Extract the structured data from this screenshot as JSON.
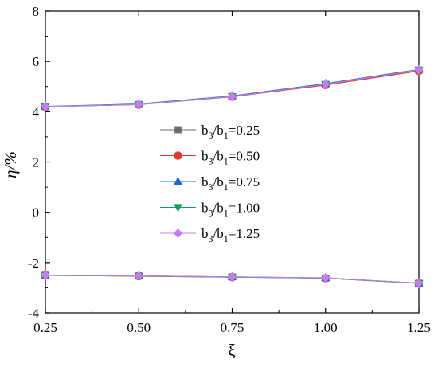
{
  "chart_data": {
    "type": "line",
    "x": [
      0.25,
      0.5,
      0.75,
      1.0,
      1.25
    ],
    "x_tick_labels": [
      "0.25",
      "0.50",
      "0.75",
      "1.00",
      "1.25"
    ],
    "y_ticks": [
      -4,
      -2,
      0,
      2,
      4,
      6,
      8
    ],
    "y_tick_labels": [
      "-4",
      "-2",
      "0",
      "2",
      "4",
      "6",
      "8"
    ],
    "xlim": [
      0.25,
      1.25
    ],
    "ylim": [
      -4,
      8
    ],
    "xlabel": "ξ",
    "ylabel": "η/%",
    "grid": false,
    "legend_position": "center-left",
    "series": [
      {
        "legend": {
          "b": "b",
          "sub1": "3",
          "slash": "/b",
          "sub2": "1",
          "val": "=0.25"
        },
        "color": "#6e6e6e",
        "marker": "square",
        "upper": [
          4.2,
          4.29,
          4.6,
          5.08,
          5.65
        ],
        "lower": [
          -2.5,
          -2.53,
          -2.57,
          -2.62,
          -2.82
        ]
      },
      {
        "legend": {
          "b": "b",
          "sub1": "3",
          "slash": "/b",
          "sub2": "1",
          "val": "=0.50"
        },
        "color": "#e8382b",
        "marker": "circle",
        "upper": [
          4.2,
          4.28,
          4.6,
          5.06,
          5.62
        ],
        "lower": [
          -2.51,
          -2.54,
          -2.58,
          -2.62,
          -2.83
        ]
      },
      {
        "legend": {
          "b": "b",
          "sub1": "3",
          "slash": "/b",
          "sub2": "1",
          "val": "=0.75"
        },
        "color": "#1f64d6",
        "marker": "triangle-up",
        "upper": [
          4.21,
          4.31,
          4.63,
          5.12,
          5.68
        ],
        "lower": [
          -2.5,
          -2.53,
          -2.57,
          -2.61,
          -2.82
        ]
      },
      {
        "legend": {
          "b": "b",
          "sub1": "3",
          "slash": "/b",
          "sub2": "1",
          "val": "=1.00"
        },
        "color": "#15a05a",
        "marker": "triangle-down",
        "upper": [
          4.2,
          4.29,
          4.61,
          5.09,
          5.66
        ],
        "lower": [
          -2.51,
          -2.54,
          -2.58,
          -2.62,
          -2.83
        ]
      },
      {
        "legend": {
          "b": "b",
          "sub1": "3",
          "slash": "/b",
          "sub2": "1",
          "val": "=1.25"
        },
        "color": "#c57cf0",
        "marker": "diamond",
        "upper": [
          4.2,
          4.29,
          4.61,
          5.09,
          5.66
        ],
        "lower": [
          -2.5,
          -2.53,
          -2.57,
          -2.61,
          -2.82
        ]
      }
    ]
  }
}
